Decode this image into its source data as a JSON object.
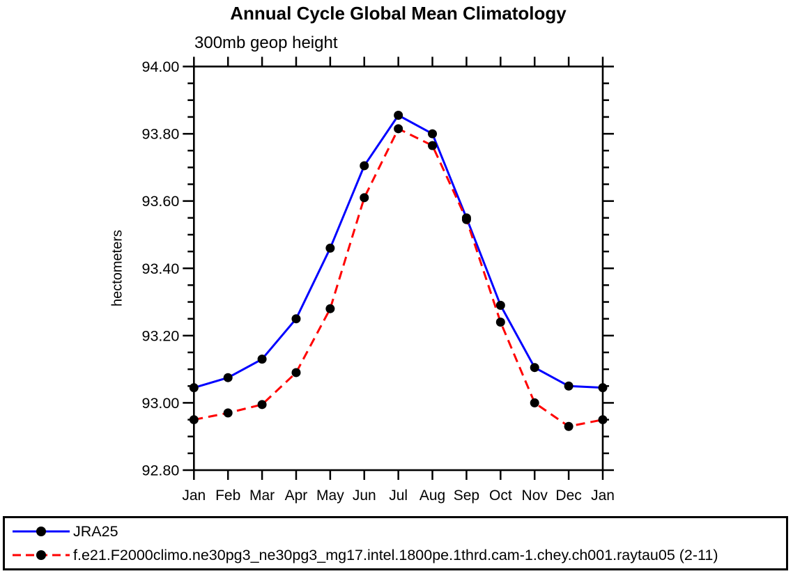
{
  "chart": {
    "title": "Annual Cycle Global Mean Climatology",
    "subtitle": "300mb geop height",
    "y_axis_label": "hectometers"
  },
  "chart_data": {
    "type": "line",
    "title": "Annual Cycle Global Mean Climatology",
    "subtitle": "300mb geop height",
    "xlabel": "",
    "ylabel": "hectometers",
    "categories": [
      "Jan",
      "Feb",
      "Mar",
      "Apr",
      "May",
      "Jun",
      "Jul",
      "Aug",
      "Sep",
      "Oct",
      "Nov",
      "Dec",
      "Jan"
    ],
    "series": [
      {
        "id": "jra25",
        "name": "JRA25",
        "color": "#0000ff",
        "line_style": "solid",
        "marker": "filled-circle",
        "marker_color": "#000000",
        "values": [
          93.045,
          93.075,
          93.13,
          93.25,
          93.46,
          93.705,
          93.855,
          93.8,
          93.55,
          93.29,
          93.105,
          93.05,
          93.045
        ]
      },
      {
        "id": "model",
        "name": "f.e21.F2000climo.ne30pg3_ne30pg3_mg17.intel.1800pe.1thrd.cam-1.chey.ch001.raytau05 (2-11)",
        "color": "#ff0000",
        "line_style": "dashed",
        "marker": "filled-circle",
        "marker_color": "#000000",
        "values": [
          92.95,
          92.97,
          92.995,
          93.09,
          93.28,
          93.61,
          93.815,
          93.765,
          93.545,
          93.24,
          93.0,
          92.93,
          92.95
        ]
      }
    ],
    "ylim": [
      92.8,
      94.0
    ],
    "y_major_step": 0.2,
    "y_minor_step": 0.05,
    "y_tick_decimals": 2,
    "grid": false,
    "legend_position": "bottom-box",
    "axis_color": "#000000"
  }
}
